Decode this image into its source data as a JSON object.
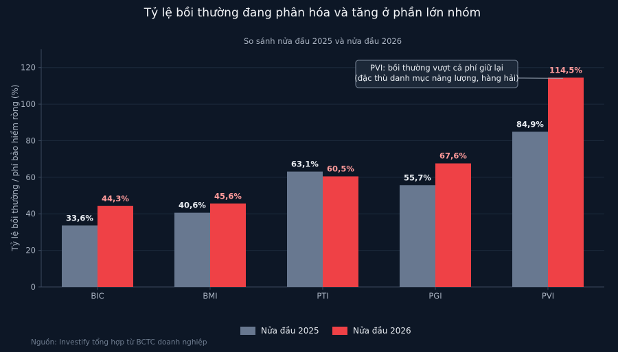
{
  "chart_data": {
    "type": "bar",
    "title": "Tỷ lệ bồi thường đang phân hóa và tăng ở phần lớn nhóm",
    "subtitle": "So sánh nửa đầu 2025 và nửa đầu 2026",
    "ylabel": "Tỷ lệ bồi thường / phí bảo hiểm ròng (%)",
    "xlabel": "",
    "ylim": [
      0,
      130
    ],
    "yticks": [
      "0",
      "20",
      "40",
      "60",
      "80",
      "100",
      "120"
    ],
    "categories": [
      "BIC",
      "BMI",
      "PTI",
      "PGI",
      "PVI"
    ],
    "series": [
      {
        "name": "Nửa đầu 2025",
        "color": "#687890",
        "values": [
          33.6,
          40.6,
          63.1,
          55.7,
          84.9
        ],
        "labels": [
          "33,6%",
          "40,6%",
          "63,1%",
          "55,7%",
          "84,9%"
        ]
      },
      {
        "name": "Nửa đầu 2026",
        "color": "#ef4146",
        "values": [
          44.3,
          45.6,
          60.5,
          67.6,
          114.5
        ],
        "labels": [
          "44,3%",
          "45,6%",
          "60,5%",
          "67,6%",
          "114,5%"
        ]
      }
    ],
    "annotation": {
      "lines": [
        "PVI: bồi thường vượt cả phí giữ lại",
        "(đặc thù danh mục năng lượng, hàng hải)"
      ],
      "target_category": "PVI",
      "target_series": 1
    },
    "grid": true,
    "legend_position": "bottom-center"
  },
  "source": "Nguồn: Investify tổng hợp từ BCTC doanh nghiệp"
}
